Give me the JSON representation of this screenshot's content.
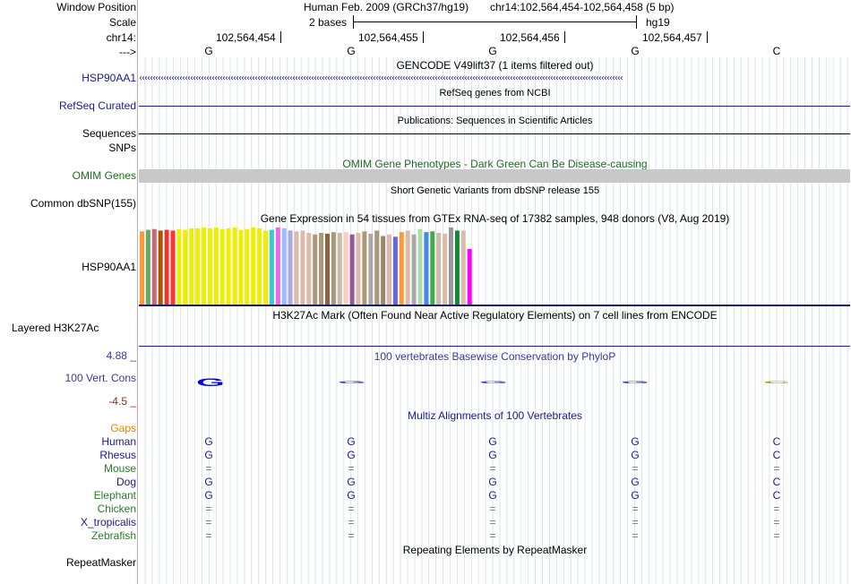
{
  "header": {
    "window_position_label": "Window Position",
    "scale_label": "Scale",
    "chrom_label": "chr14:",
    "strand_label": "--->",
    "assembly": "Human Feb. 2009 (GRCh37/hg19)",
    "position": "chr14:102,564,454-102,564,458 (5 bp)",
    "scale_text": "2 bases",
    "db_label": "hg19",
    "coordinates": [
      "102,564,454",
      "102,564,455",
      "102,564,456",
      "102,564,457"
    ],
    "bases": [
      "G",
      "G",
      "G",
      "G",
      "C"
    ]
  },
  "tracks": {
    "gencode": {
      "title": "GENCODE V49lift37 (1 items filtered out)",
      "label": "HSP90AA1",
      "color": "#1a1a8c"
    },
    "refseq": {
      "title": "RefSeq genes from NCBI",
      "label": "RefSeq Curated",
      "color": "#1a1a8c"
    },
    "publications": {
      "title": "Publications: Sequences in Scientific Articles",
      "label": "Sequences"
    },
    "snps_label": "SNPs",
    "omim": {
      "title": "OMIM Gene Phenotypes - Dark Green Can Be Disease-causing",
      "label": "OMIM Genes",
      "color": "#1e6e1e",
      "bar_color": "#c8c8c8"
    },
    "dbsnp": {
      "title": "Short Genetic Variants from dbSNP release 155",
      "label": "Common dbSNP(155)"
    },
    "gtex": {
      "title": "Gene Expression in 54 tissues from GTEx RNA-seq of 17382 samples, 948 donors (V8, Aug 2019)",
      "label": "HSP90AA1",
      "tissues": [
        {
          "color": "#ff9933",
          "value": 0.95
        },
        {
          "color": "#66aa66",
          "value": 0.97
        },
        {
          "color": "#cc6677",
          "value": 0.98
        },
        {
          "color": "#aa5500",
          "value": 0.96
        },
        {
          "color": "#ee3333",
          "value": 0.97
        },
        {
          "color": "#ff3333",
          "value": 0.96
        },
        {
          "color": "#eeee00",
          "value": 0.98
        },
        {
          "color": "#eeee00",
          "value": 0.97
        },
        {
          "color": "#eeee00",
          "value": 0.99
        },
        {
          "color": "#eeee00",
          "value": 0.99
        },
        {
          "color": "#eeee00",
          "value": 1.0
        },
        {
          "color": "#eeee00",
          "value": 0.99
        },
        {
          "color": "#eeee00",
          "value": 1.0
        },
        {
          "color": "#eeee00",
          "value": 0.98
        },
        {
          "color": "#eeee00",
          "value": 0.99
        },
        {
          "color": "#eeee00",
          "value": 1.0
        },
        {
          "color": "#eeee00",
          "value": 0.97
        },
        {
          "color": "#eeee00",
          "value": 0.98
        },
        {
          "color": "#eeee00",
          "value": 1.0
        },
        {
          "color": "#eeee00",
          "value": 0.99
        },
        {
          "color": "#eeee00",
          "value": 0.96
        },
        {
          "color": "#33cccc",
          "value": 0.97
        },
        {
          "color": "#ee66ee",
          "value": 1.0
        },
        {
          "color": "#99bbff",
          "value": 0.99
        },
        {
          "color": "#aaaadd",
          "value": 0.96
        },
        {
          "color": "#ddbbaa",
          "value": 0.95
        },
        {
          "color": "#ddbbaa",
          "value": 0.96
        },
        {
          "color": "#ddbbaa",
          "value": 0.93
        },
        {
          "color": "#aa9977",
          "value": 0.91
        },
        {
          "color": "#aa9977",
          "value": 0.93
        },
        {
          "color": "#886644",
          "value": 0.92
        },
        {
          "color": "#aa9977",
          "value": 0.94
        },
        {
          "color": "#ccbbaa",
          "value": 0.93
        },
        {
          "color": "#ffccbb",
          "value": 0.94
        },
        {
          "color": "#995599",
          "value": 0.91
        },
        {
          "color": "#ddbbaa",
          "value": 0.93
        },
        {
          "color": "#aa9977",
          "value": 0.95
        },
        {
          "color": "#aaaaaa",
          "value": 0.92
        },
        {
          "color": "#aa9977",
          "value": 0.96
        },
        {
          "color": "#998866",
          "value": 0.89
        },
        {
          "color": "#ddbbaa",
          "value": 0.91
        },
        {
          "color": "#6666dd",
          "value": 0.88
        },
        {
          "color": "#ff9933",
          "value": 0.94
        },
        {
          "color": "#ddbbaa",
          "value": 0.96
        },
        {
          "color": "#aaaaaa",
          "value": 0.91
        },
        {
          "color": "#aaddaa",
          "value": 0.98
        },
        {
          "color": "#4488ee",
          "value": 0.94
        },
        {
          "color": "#44aa44",
          "value": 0.95
        },
        {
          "color": "#ccbbaa",
          "value": 0.93
        },
        {
          "color": "#ddbbaa",
          "value": 0.92
        },
        {
          "color": "#999999",
          "value": 1.0
        },
        {
          "color": "#118833",
          "value": 0.96
        },
        {
          "color": "#ddbbaa",
          "value": 0.96
        },
        {
          "color": "#ff00ff",
          "value": 0.72
        }
      ]
    },
    "h3k27ac": {
      "title": "H3K27Ac Mark (Often Found Near Active Regulatory Elements) on 7 cell lines from ENCODE",
      "label": "Layered H3K27Ac"
    },
    "phylop": {
      "title": "100 vertebrates Basewise Conservation by PhyloP",
      "label": "100 Vert. Cons",
      "max_label": "4.88 _",
      "min_label": "-4.5 _",
      "scores": [
        4.2,
        0.5,
        0.5,
        0.5,
        0.7
      ],
      "colors": [
        "#0000ee",
        "#3333bb",
        "#3333bb",
        "#3333bb",
        "#999900"
      ],
      "label_color": "#3a3a9a",
      "min_color": "#8c2a1a"
    },
    "multiz": {
      "title": "Multiz Alignments of 100 Vertebrates",
      "title_color": "#1a1a8c",
      "gaps_label": "Gaps",
      "gaps_color": "#dd8800",
      "species": [
        {
          "name": "Human",
          "color": "#1a1a8c",
          "bases": [
            "G",
            "G",
            "G",
            "G",
            "C"
          ]
        },
        {
          "name": "Rhesus",
          "color": "#1a1a8c",
          "bases": [
            "G",
            "G",
            "G",
            "G",
            "C"
          ]
        },
        {
          "name": "Mouse",
          "color": "#2a7a2a",
          "bases": [
            "=",
            "=",
            "=",
            "=",
            "="
          ]
        },
        {
          "name": "Dog",
          "color": "#1a1a8c",
          "bases": [
            "G",
            "G",
            "G",
            "G",
            "C"
          ]
        },
        {
          "name": "Elephant",
          "color": "#2a7a2a",
          "bases": [
            "G",
            "G",
            "G",
            "G",
            "C"
          ]
        },
        {
          "name": "Chicken",
          "color": "#2a7a2a",
          "bases": [
            "=",
            "=",
            "=",
            "=",
            "="
          ]
        },
        {
          "name": "X_tropicalis",
          "color": "#1a1a8c",
          "bases": [
            "=",
            "=",
            "=",
            "=",
            "="
          ]
        },
        {
          "name": "Zebrafish",
          "color": "#2a7a2a",
          "bases": [
            "=",
            "=",
            "=",
            "=",
            "="
          ]
        }
      ]
    },
    "repeatmasker": {
      "title": "Repeating Elements by RepeatMasker",
      "label": "RepeatMasker"
    }
  }
}
